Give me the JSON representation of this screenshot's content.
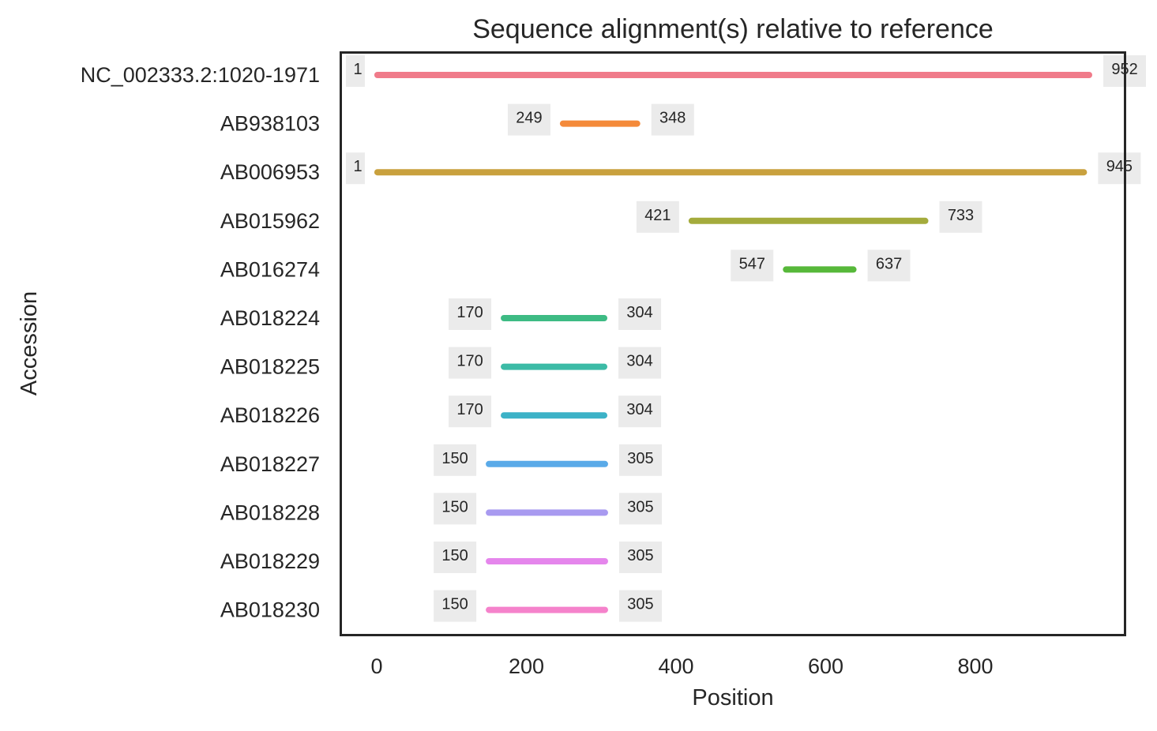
{
  "chart_data": {
    "type": "range",
    "title": "Sequence alignment(s) relative to reference",
    "xlabel": "Position",
    "ylabel": "Accession",
    "xlim": [
      -48,
      1000
    ],
    "xticks": [
      0,
      200,
      400,
      600,
      800
    ],
    "grid": false,
    "legend": "none",
    "series": [
      {
        "name": "NC_002333.2:1020-1971",
        "start": 1,
        "end": 952,
        "color": "#f07b8a"
      },
      {
        "name": "AB938103",
        "start": 249,
        "end": 348,
        "color": "#f48a3a"
      },
      {
        "name": "AB006953",
        "start": 1,
        "end": 945,
        "color": "#c9a13e"
      },
      {
        "name": "AB015962",
        "start": 421,
        "end": 733,
        "color": "#a4ab3c"
      },
      {
        "name": "AB016274",
        "start": 547,
        "end": 637,
        "color": "#57b83a"
      },
      {
        "name": "AB018224",
        "start": 170,
        "end": 304,
        "color": "#3dbb84"
      },
      {
        "name": "AB018225",
        "start": 170,
        "end": 304,
        "color": "#3cbba6"
      },
      {
        "name": "AB018226",
        "start": 170,
        "end": 304,
        "color": "#3cb2c7"
      },
      {
        "name": "AB018227",
        "start": 150,
        "end": 305,
        "color": "#5aaae8"
      },
      {
        "name": "AB018228",
        "start": 150,
        "end": 305,
        "color": "#a89af0"
      },
      {
        "name": "AB018229",
        "start": 150,
        "end": 305,
        "color": "#e586ec"
      },
      {
        "name": "AB018230",
        "start": 150,
        "end": 305,
        "color": "#f582cb"
      }
    ]
  }
}
